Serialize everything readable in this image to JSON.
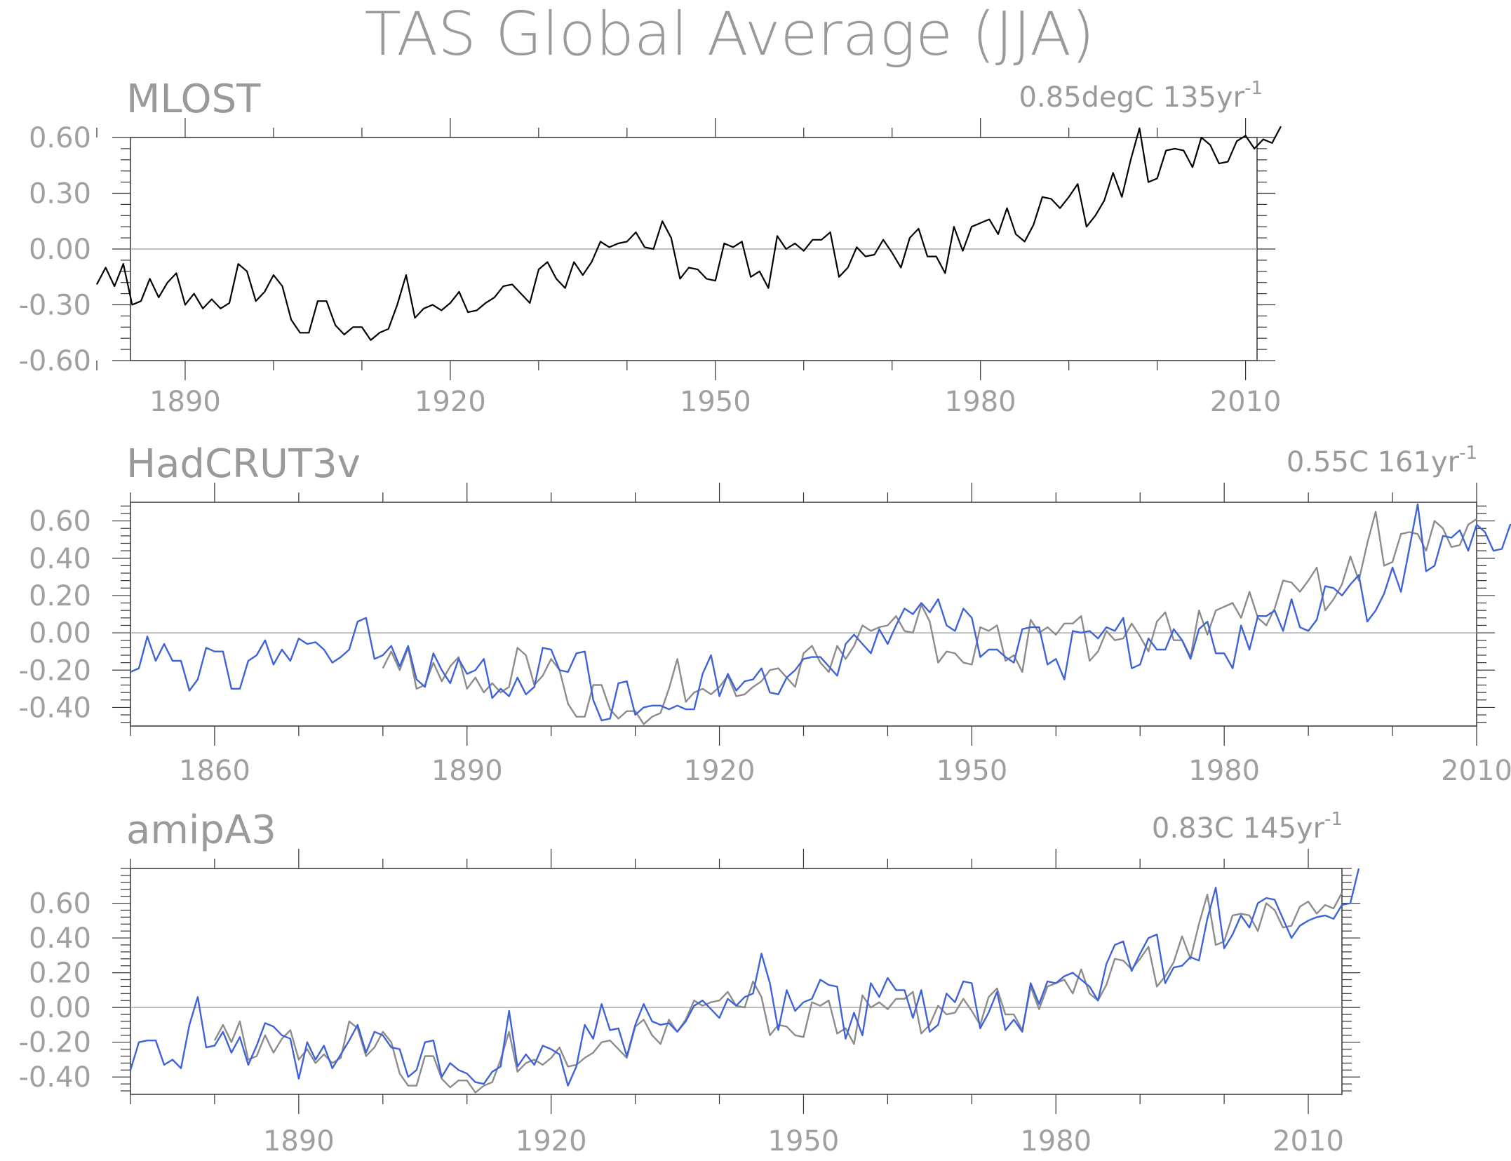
{
  "figure_title": "TAS Global Average (JJA)",
  "colors": {
    "text": "#9a9a9a",
    "frame": "#333333",
    "zero_line": "#aaaaaa",
    "black_series": "#000000",
    "blue_series": "#3f63d6",
    "gray_series": "#8c8c8c"
  },
  "chart_data": [
    {
      "type": "line",
      "panel": "MLOST",
      "trend_label": "0.85degC 135yr",
      "trend_exponent": "-1",
      "ylim": [
        -0.6,
        0.6
      ],
      "xlim": [
        1880,
        2014
      ],
      "yticks": [
        "-0.60",
        "-0.30",
        "0.00",
        "0.30",
        "0.60"
      ],
      "ytick_values": [
        -0.6,
        -0.3,
        0,
        0.3,
        0.6
      ],
      "xticks": [
        "1890",
        "1920",
        "1950",
        "1980",
        "2010"
      ],
      "xtick_values": [
        1890,
        1920,
        1950,
        1980,
        2010
      ],
      "zero_line": true,
      "legend": "none",
      "series": [
        {
          "color": "#000000",
          "x_start": 1880,
          "values": [
            -0.19,
            -0.1,
            -0.2,
            -0.08,
            -0.3,
            -0.28,
            -0.16,
            -0.26,
            -0.18,
            -0.13,
            -0.3,
            -0.24,
            -0.32,
            -0.27,
            -0.32,
            -0.29,
            -0.08,
            -0.12,
            -0.28,
            -0.23,
            -0.14,
            -0.2,
            -0.38,
            -0.45,
            -0.45,
            -0.28,
            -0.28,
            -0.41,
            -0.46,
            -0.42,
            -0.42,
            -0.49,
            -0.45,
            -0.43,
            -0.3,
            -0.14,
            -0.37,
            -0.32,
            -0.3,
            -0.33,
            -0.29,
            -0.23,
            -0.34,
            -0.33,
            -0.29,
            -0.26,
            -0.2,
            -0.19,
            -0.24,
            -0.29,
            -0.11,
            -0.07,
            -0.16,
            -0.21,
            -0.07,
            -0.14,
            -0.07,
            0.04,
            0.01,
            0.03,
            0.04,
            0.09,
            0.01,
            0.0,
            0.15,
            0.06,
            -0.16,
            -0.1,
            -0.11,
            -0.16,
            -0.17,
            0.03,
            0.01,
            0.04,
            -0.15,
            -0.12,
            -0.21,
            0.07,
            0.0,
            0.03,
            -0.01,
            0.05,
            0.05,
            0.09,
            -0.15,
            -0.1,
            0.01,
            -0.04,
            -0.03,
            0.05,
            -0.02,
            -0.1,
            0.06,
            0.11,
            -0.04,
            -0.04,
            -0.13,
            0.12,
            -0.01,
            0.12,
            0.14,
            0.16,
            0.08,
            0.22,
            0.08,
            0.04,
            0.13,
            0.28,
            0.27,
            0.22,
            0.28,
            0.35,
            0.12,
            0.18,
            0.26,
            0.41,
            0.28,
            0.48,
            0.65,
            0.36,
            0.38,
            0.53,
            0.54,
            0.53,
            0.44,
            0.6,
            0.56,
            0.46,
            0.47,
            0.58,
            0.61,
            0.54,
            0.59,
            0.57,
            0.66
          ]
        }
      ]
    },
    {
      "type": "line",
      "panel": "HadCRUT3v",
      "trend_label": "0.55C 161yr",
      "trend_exponent": "-1",
      "ylim": [
        -0.5,
        0.7
      ],
      "xlim": [
        1850,
        2010
      ],
      "yticks": [
        "-0.40",
        "-0.20",
        "0.00",
        "0.20",
        "0.40",
        "0.60"
      ],
      "ytick_values": [
        -0.4,
        -0.2,
        0,
        0.2,
        0.4,
        0.6
      ],
      "xticks": [
        "1860",
        "1890",
        "1920",
        "1950",
        "1980",
        "2010"
      ],
      "xtick_values": [
        1860,
        1890,
        1920,
        1950,
        1980,
        2010
      ],
      "zero_line": true,
      "legend": "none",
      "series": [
        {
          "color": "#8c8c8c",
          "x_start": 1880,
          "values": [
            -0.19,
            -0.1,
            -0.2,
            -0.08,
            -0.3,
            -0.28,
            -0.16,
            -0.26,
            -0.18,
            -0.13,
            -0.3,
            -0.24,
            -0.32,
            -0.27,
            -0.32,
            -0.29,
            -0.08,
            -0.12,
            -0.28,
            -0.23,
            -0.14,
            -0.2,
            -0.38,
            -0.45,
            -0.45,
            -0.28,
            -0.28,
            -0.41,
            -0.46,
            -0.42,
            -0.42,
            -0.49,
            -0.45,
            -0.43,
            -0.3,
            -0.14,
            -0.37,
            -0.32,
            -0.3,
            -0.33,
            -0.29,
            -0.23,
            -0.34,
            -0.33,
            -0.29,
            -0.26,
            -0.2,
            -0.19,
            -0.24,
            -0.29,
            -0.11,
            -0.07,
            -0.16,
            -0.21,
            -0.07,
            -0.14,
            -0.07,
            0.04,
            0.01,
            0.03,
            0.04,
            0.09,
            0.01,
            0.0,
            0.15,
            0.06,
            -0.16,
            -0.1,
            -0.11,
            -0.16,
            -0.17,
            0.03,
            0.01,
            0.04,
            -0.15,
            -0.12,
            -0.21,
            0.07,
            0.0,
            0.03,
            -0.01,
            0.05,
            0.05,
            0.09,
            -0.15,
            -0.1,
            0.01,
            -0.04,
            -0.03,
            0.05,
            -0.02,
            -0.1,
            0.06,
            0.11,
            -0.04,
            -0.04,
            -0.13,
            0.12,
            -0.01,
            0.12,
            0.14,
            0.16,
            0.08,
            0.22,
            0.08,
            0.04,
            0.13,
            0.28,
            0.27,
            0.22,
            0.28,
            0.35,
            0.12,
            0.18,
            0.26,
            0.41,
            0.28,
            0.48,
            0.65,
            0.36,
            0.38,
            0.53,
            0.54,
            0.53,
            0.44,
            0.6,
            0.56,
            0.46,
            0.47,
            0.58,
            0.61
          ]
        },
        {
          "color": "#3f63d6",
          "x_start": 1850,
          "values": [
            -0.21,
            -0.19,
            -0.02,
            -0.15,
            -0.06,
            -0.15,
            -0.15,
            -0.31,
            -0.25,
            -0.08,
            -0.1,
            -0.1,
            -0.3,
            -0.3,
            -0.15,
            -0.12,
            -0.04,
            -0.17,
            -0.09,
            -0.15,
            -0.03,
            -0.06,
            -0.05,
            -0.09,
            -0.16,
            -0.13,
            -0.09,
            0.06,
            0.08,
            -0.14,
            -0.12,
            -0.07,
            -0.18,
            -0.07,
            -0.25,
            -0.29,
            -0.11,
            -0.2,
            -0.27,
            -0.14,
            -0.22,
            -0.2,
            -0.14,
            -0.35,
            -0.3,
            -0.34,
            -0.24,
            -0.33,
            -0.29,
            -0.08,
            -0.09,
            -0.2,
            -0.21,
            -0.11,
            -0.1,
            -0.36,
            -0.47,
            -0.46,
            -0.27,
            -0.26,
            -0.44,
            -0.4,
            -0.39,
            -0.39,
            -0.41,
            -0.39,
            -0.41,
            -0.41,
            -0.22,
            -0.12,
            -0.34,
            -0.22,
            -0.31,
            -0.26,
            -0.25,
            -0.19,
            -0.32,
            -0.33,
            -0.24,
            -0.2,
            -0.14,
            -0.13,
            -0.13,
            -0.18,
            -0.23,
            -0.06,
            -0.01,
            -0.06,
            -0.11,
            0.02,
            -0.06,
            0.04,
            0.13,
            0.1,
            0.16,
            0.11,
            0.18,
            0.04,
            0.01,
            0.13,
            0.08,
            -0.13,
            -0.09,
            -0.09,
            -0.13,
            -0.16,
            0.02,
            0.03,
            0.03,
            -0.17,
            -0.14,
            -0.25,
            0.01,
            0.0,
            0.01,
            -0.03,
            0.03,
            0.01,
            0.08,
            -0.19,
            -0.17,
            -0.03,
            -0.09,
            -0.09,
            0.02,
            -0.04,
            -0.14,
            0.02,
            0.06,
            -0.11,
            -0.11,
            -0.19,
            0.04,
            -0.09,
            0.09,
            0.09,
            0.12,
            0.01,
            0.18,
            0.03,
            0.01,
            0.07,
            0.25,
            0.24,
            0.2,
            0.26,
            0.31,
            0.06,
            0.12,
            0.21,
            0.35,
            0.22,
            0.45,
            0.69,
            0.33,
            0.36,
            0.52,
            0.51,
            0.55,
            0.44,
            0.58,
            0.54,
            0.44,
            0.45,
            0.58,
            0.58
          ]
        }
      ]
    },
    {
      "type": "line",
      "panel": "amipA3",
      "trend_label": "0.83C 145yr",
      "trend_exponent": "-1",
      "ylim": [
        -0.5,
        0.8
      ],
      "xlim": [
        1870,
        2014
      ],
      "yticks": [
        "-0.40",
        "-0.20",
        "0.00",
        "0.20",
        "0.40",
        "0.60"
      ],
      "ytick_values": [
        -0.4,
        -0.2,
        0,
        0.2,
        0.4,
        0.6
      ],
      "xticks": [
        "1890",
        "1920",
        "1950",
        "1980",
        "2010"
      ],
      "xtick_values": [
        1890,
        1920,
        1950,
        1980,
        2010
      ],
      "zero_line": true,
      "legend": "none",
      "series": [
        {
          "color": "#8c8c8c",
          "x_start": 1880,
          "values": [
            -0.19,
            -0.1,
            -0.2,
            -0.08,
            -0.3,
            -0.28,
            -0.16,
            -0.26,
            -0.18,
            -0.13,
            -0.3,
            -0.24,
            -0.32,
            -0.27,
            -0.32,
            -0.29,
            -0.08,
            -0.12,
            -0.28,
            -0.23,
            -0.14,
            -0.2,
            -0.38,
            -0.45,
            -0.45,
            -0.28,
            -0.28,
            -0.41,
            -0.46,
            -0.42,
            -0.42,
            -0.49,
            -0.45,
            -0.43,
            -0.3,
            -0.14,
            -0.37,
            -0.32,
            -0.3,
            -0.33,
            -0.29,
            -0.23,
            -0.34,
            -0.33,
            -0.29,
            -0.26,
            -0.2,
            -0.19,
            -0.24,
            -0.29,
            -0.11,
            -0.07,
            -0.16,
            -0.21,
            -0.07,
            -0.14,
            -0.07,
            0.04,
            0.01,
            0.03,
            0.04,
            0.09,
            0.01,
            0.0,
            0.15,
            0.06,
            -0.16,
            -0.1,
            -0.11,
            -0.16,
            -0.17,
            0.03,
            0.01,
            0.04,
            -0.15,
            -0.12,
            -0.21,
            0.07,
            0.0,
            0.03,
            -0.01,
            0.05,
            0.05,
            0.09,
            -0.15,
            -0.1,
            0.01,
            -0.04,
            -0.03,
            0.05,
            -0.02,
            -0.1,
            0.06,
            0.11,
            -0.04,
            -0.04,
            -0.13,
            0.12,
            -0.01,
            0.12,
            0.14,
            0.16,
            0.08,
            0.22,
            0.08,
            0.04,
            0.13,
            0.28,
            0.27,
            0.22,
            0.28,
            0.35,
            0.12,
            0.18,
            0.26,
            0.41,
            0.28,
            0.48,
            0.65,
            0.36,
            0.38,
            0.53,
            0.54,
            0.53,
            0.44,
            0.6,
            0.56,
            0.46,
            0.47,
            0.58,
            0.61,
            0.54,
            0.59,
            0.57,
            0.66
          ]
        },
        {
          "color": "#3f63d6",
          "x_start": 1870,
          "values": [
            -0.36,
            -0.2,
            -0.19,
            -0.19,
            -0.33,
            -0.3,
            -0.35,
            -0.1,
            0.06,
            -0.23,
            -0.22,
            -0.14,
            -0.26,
            -0.17,
            -0.33,
            -0.22,
            -0.09,
            -0.11,
            -0.16,
            -0.18,
            -0.41,
            -0.2,
            -0.3,
            -0.22,
            -0.35,
            -0.27,
            -0.19,
            -0.1,
            -0.26,
            -0.14,
            -0.16,
            -0.23,
            -0.24,
            -0.4,
            -0.36,
            -0.2,
            -0.19,
            -0.4,
            -0.32,
            -0.36,
            -0.38,
            -0.43,
            -0.44,
            -0.37,
            -0.34,
            -0.02,
            -0.34,
            -0.27,
            -0.33,
            -0.22,
            -0.24,
            -0.27,
            -0.45,
            -0.34,
            -0.1,
            -0.18,
            0.02,
            -0.13,
            -0.12,
            -0.28,
            -0.1,
            0.02,
            -0.08,
            -0.1,
            -0.09,
            -0.14,
            -0.08,
            0.01,
            0.04,
            -0.01,
            -0.06,
            0.05,
            0.01,
            0.06,
            0.08,
            0.31,
            0.14,
            -0.13,
            0.1,
            -0.02,
            0.03,
            0.05,
            0.16,
            0.13,
            0.12,
            -0.18,
            -0.03,
            -0.16,
            0.14,
            0.06,
            0.17,
            0.1,
            0.1,
            -0.06,
            0.1,
            -0.14,
            -0.1,
            0.08,
            0.03,
            0.15,
            0.14,
            -0.12,
            -0.03,
            0.09,
            -0.13,
            -0.07,
            -0.14,
            0.14,
            0.02,
            0.15,
            0.14,
            0.18,
            0.2,
            0.16,
            0.12,
            0.04,
            0.25,
            0.36,
            0.38,
            0.21,
            0.31,
            0.4,
            0.42,
            0.14,
            0.23,
            0.24,
            0.29,
            0.27,
            0.51,
            0.69,
            0.34,
            0.42,
            0.53,
            0.46,
            0.6,
            0.63,
            0.62,
            0.51,
            0.4,
            0.47,
            0.5,
            0.52,
            0.53,
            0.51,
            0.59,
            0.6,
            0.8
          ]
        }
      ]
    }
  ]
}
